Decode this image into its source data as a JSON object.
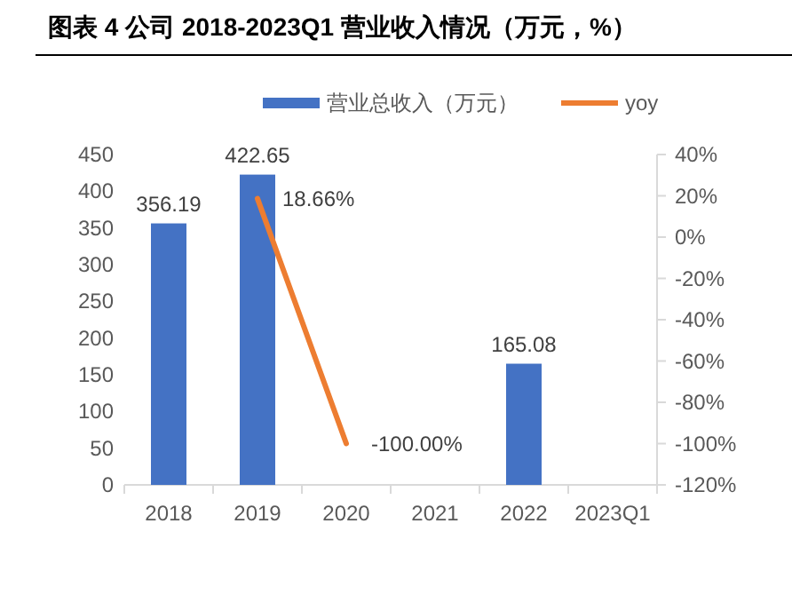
{
  "chart_data": {
    "type": "bar",
    "title": "图表 4 公司 2018-2023Q1 营业收入情况（万元，%）",
    "categories": [
      "2018",
      "2019",
      "2020",
      "2021",
      "2022",
      "2023Q1"
    ],
    "series": [
      {
        "name": "营业总收入（万元）",
        "color": "#4472c4",
        "values": [
          356.19,
          422.65,
          null,
          null,
          165.08,
          null
        ],
        "value_labels": [
          "356.19",
          "422.65",
          null,
          null,
          "165.08",
          null
        ]
      },
      {
        "name": "yoy",
        "type": "line",
        "axis": "y2",
        "color": "#ed7d31",
        "marker": "none",
        "values": [
          null,
          18.66,
          -100,
          null,
          null,
          null
        ],
        "value_labels": [
          null,
          "18.66%",
          "-100.00%",
          null,
          null,
          null
        ]
      }
    ],
    "ylim": [
      0,
      450
    ],
    "yticks": [
      0,
      50,
      100,
      150,
      200,
      250,
      300,
      350,
      400,
      450
    ],
    "y2lim": [
      -120,
      40
    ],
    "y2ticks": [
      {
        "value": -120,
        "label": "-120%"
      },
      {
        "value": -100,
        "label": "-100%"
      },
      {
        "value": -80,
        "label": "-80%"
      },
      {
        "value": -60,
        "label": "-60%"
      },
      {
        "value": -40,
        "label": "-40%"
      },
      {
        "value": -20,
        "label": "-20%"
      },
      {
        "value": 0,
        "label": "0%"
      },
      {
        "value": 20,
        "label": "20%"
      },
      {
        "value": 40,
        "label": "40%"
      }
    ],
    "grid": false,
    "legend": "top"
  }
}
